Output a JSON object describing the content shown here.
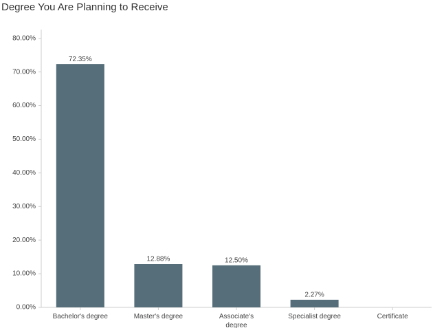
{
  "chart_data": {
    "type": "bar",
    "title": "Degree You Are Planning to Receive",
    "categories": [
      "Bachelor's degree",
      "Master's degree",
      "Associate's degree",
      "Specialist degree",
      "Certificate"
    ],
    "values": [
      72.35,
      12.88,
      12.5,
      2.27,
      0
    ],
    "value_labels": [
      "72.35%",
      "12.88%",
      "12.50%",
      "2.27%",
      null
    ],
    "color": "#556e79",
    "ylim": [
      0,
      82.6
    ],
    "yticks": [
      {
        "value": 0,
        "label": "0.00%"
      },
      {
        "value": 10,
        "label": "10.00%"
      },
      {
        "value": 20,
        "label": "20.00%"
      },
      {
        "value": 30,
        "label": "30.00%"
      },
      {
        "value": 40,
        "label": "40.00%"
      },
      {
        "value": 50,
        "label": "50.00%"
      },
      {
        "value": 60,
        "label": "60.00%"
      },
      {
        "value": 70,
        "label": "70.00%"
      },
      {
        "value": 80,
        "label": "80.00%"
      }
    ]
  }
}
